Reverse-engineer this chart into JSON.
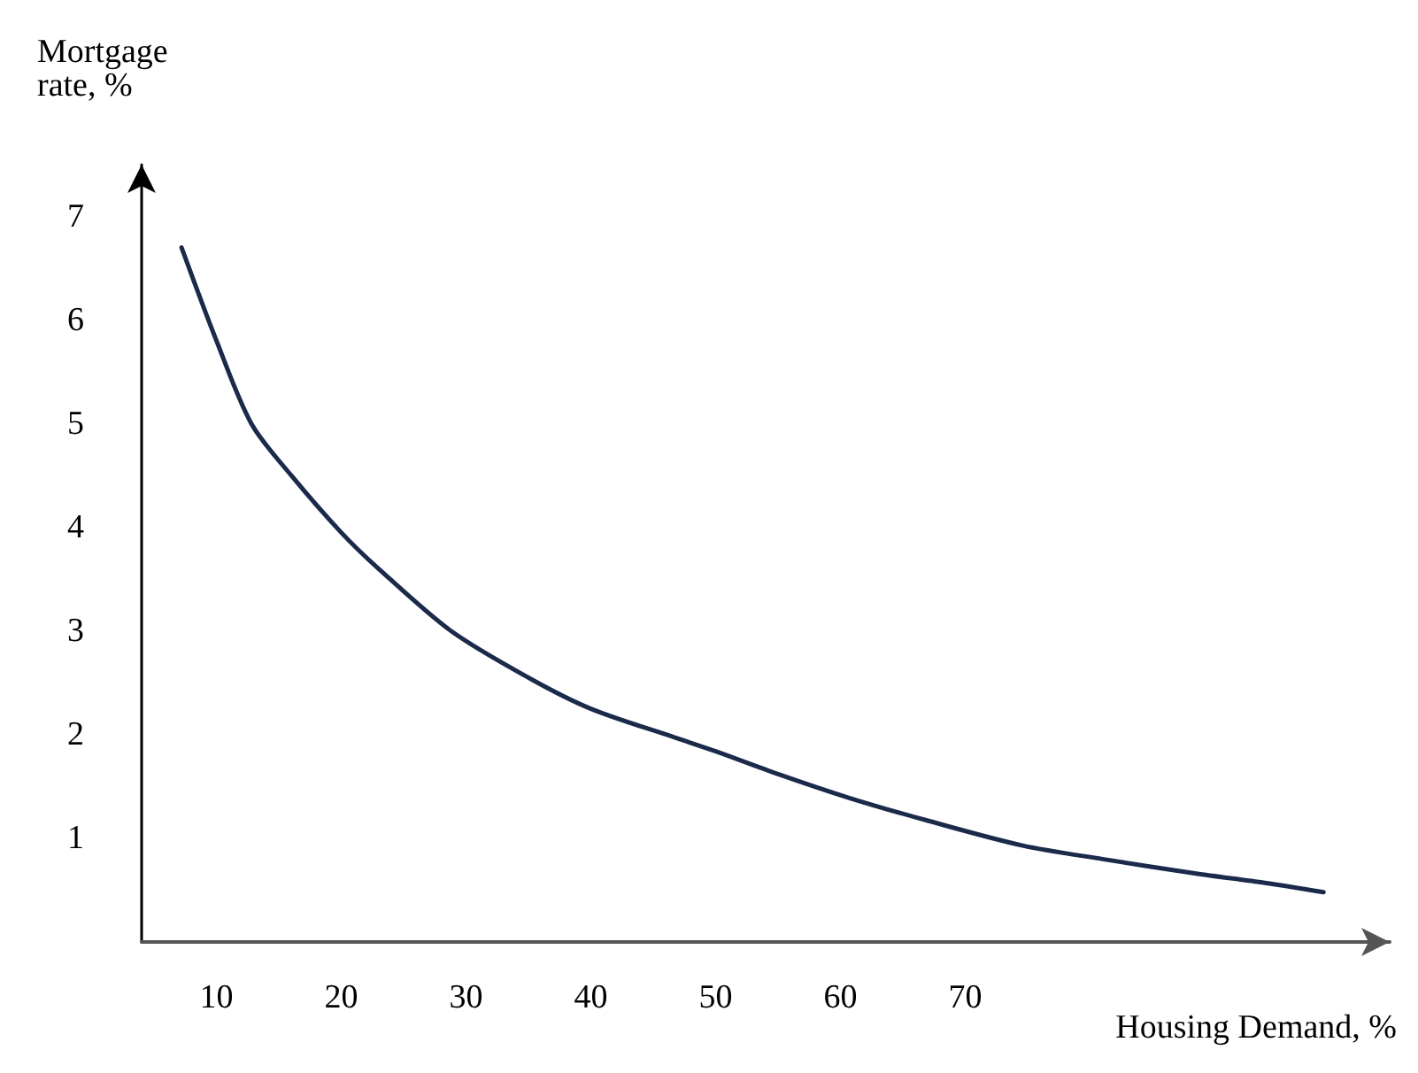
{
  "chart_data": {
    "type": "line",
    "xlabel": "Housing Demand, %",
    "ylabel": "Mortgage rate, %",
    "x": [
      7.2,
      10,
      12.8,
      16,
      20,
      23,
      28.8,
      35,
      40,
      46.8,
      50,
      55,
      60.7,
      67,
      74.6,
      81,
      88.5,
      94,
      98.7
    ],
    "series": [
      {
        "color": "#1b2a4a",
        "values": [
          6.7,
          5.8,
          5.0,
          4.5,
          3.95,
          3.6,
          3.0,
          2.55,
          2.25,
          1.97,
          1.84,
          1.62,
          1.39,
          1.17,
          0.93,
          0.8,
          0.66,
          0.57,
          0.48
        ]
      }
    ],
    "xlim": [
      4,
      104
    ],
    "xticks": [
      10,
      20,
      30,
      40,
      50,
      60,
      70
    ],
    "ylim": [
      0,
      7.5
    ],
    "yticks": [
      1,
      2,
      3,
      4,
      5,
      6,
      7
    ],
    "grid": false,
    "marker": "none",
    "line_style": "solid"
  }
}
